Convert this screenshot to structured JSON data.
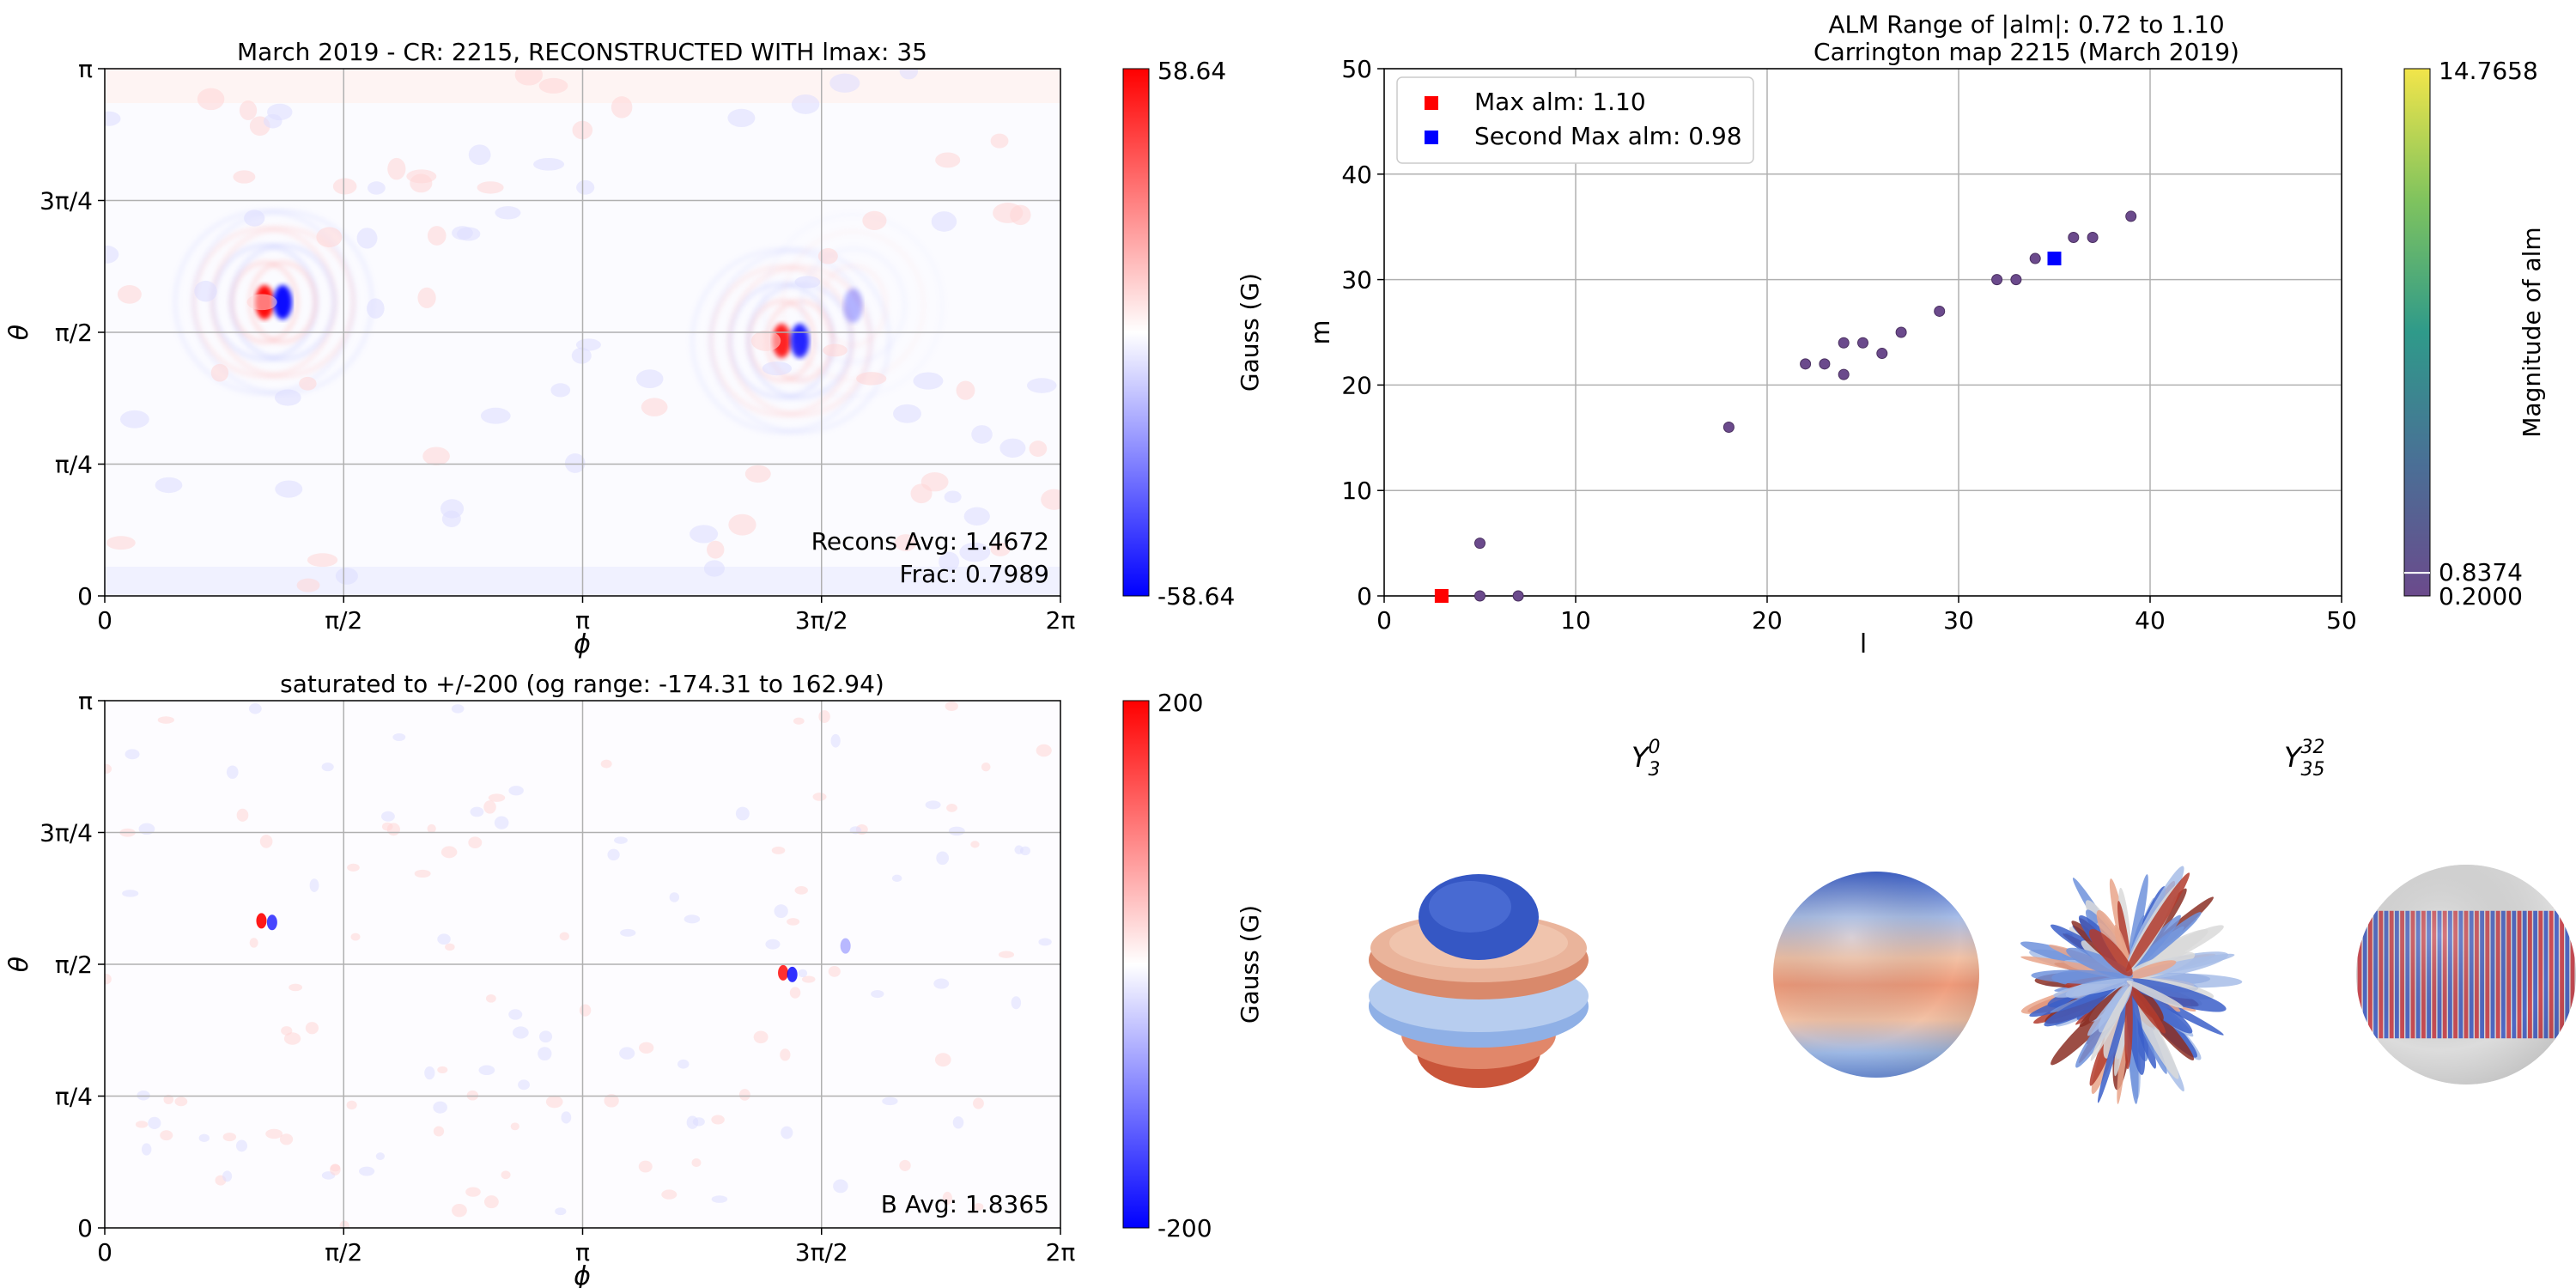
{
  "colors": {
    "map_positive": "#ff0000",
    "map_negative": "#0000ff",
    "scatter_point": "#6b4a8c",
    "max_alm": "#ff0000",
    "second_max_alm": "#0000ff",
    "grid": "#b0b0b0"
  },
  "chart_data": [
    {
      "type": "heatmap",
      "title": "March 2019 - CR: 2215, RECONSTRUCTED WITH lmax: 35",
      "xlabel": "ϕ",
      "ylabel": "θ",
      "xticks": [
        "0",
        "π/2",
        "π",
        "3π/2",
        "2π"
      ],
      "yticks": [
        "0",
        "π/4",
        "π/2",
        "3π/4",
        "π"
      ],
      "xlim": [
        0,
        6.2832
      ],
      "ylim": [
        0,
        3.1416
      ],
      "colorbar": {
        "label": "Gauss (G)",
        "max_label": "58.64",
        "min_label": "-58.64",
        "range": [
          -58.64,
          58.64
        ]
      },
      "annotations": [
        "Recons Avg: 1.4672",
        "Frac: 0.7989"
      ],
      "features": [
        {
          "phi": 1.05,
          "theta": 1.75,
          "polarity": "positive",
          "strength": 1.0
        },
        {
          "phi": 1.17,
          "theta": 1.75,
          "polarity": "negative",
          "strength": 1.0
        },
        {
          "phi": 4.45,
          "theta": 1.52,
          "polarity": "positive",
          "strength": 0.9
        },
        {
          "phi": 4.57,
          "theta": 1.52,
          "polarity": "negative",
          "strength": 0.9
        },
        {
          "phi": 4.92,
          "theta": 1.73,
          "polarity": "negative",
          "strength": 0.3
        }
      ]
    },
    {
      "type": "scatter",
      "title": "ALM Range of |alm|: 0.72 to 1.10",
      "subtitle": "Carrington map 2215 (March 2019)",
      "xlabel": "l",
      "ylabel": "m",
      "xlim": [
        0,
        50
      ],
      "ylim": [
        0,
        50
      ],
      "xticks": [
        0,
        10,
        20,
        30,
        40,
        50
      ],
      "yticks": [
        0,
        10,
        20,
        30,
        40,
        50
      ],
      "grid": true,
      "legend_position": "top-left",
      "points": [
        {
          "x": 5,
          "y": 5
        },
        {
          "x": 5,
          "y": 0
        },
        {
          "x": 7,
          "y": 0
        },
        {
          "x": 18,
          "y": 16
        },
        {
          "x": 22,
          "y": 22
        },
        {
          "x": 23,
          "y": 22
        },
        {
          "x": 24,
          "y": 24
        },
        {
          "x": 24,
          "y": 21
        },
        {
          "x": 25,
          "y": 24
        },
        {
          "x": 26,
          "y": 23
        },
        {
          "x": 27,
          "y": 25
        },
        {
          "x": 29,
          "y": 27
        },
        {
          "x": 32,
          "y": 30
        },
        {
          "x": 33,
          "y": 30
        },
        {
          "x": 34,
          "y": 32
        },
        {
          "x": 36,
          "y": 34
        },
        {
          "x": 37,
          "y": 34
        },
        {
          "x": 39,
          "y": 36
        }
      ],
      "highlights": [
        {
          "name": "Max alm: 1.10",
          "x": 3,
          "y": 0,
          "color": "#ff0000"
        },
        {
          "name": "Second Max alm: 0.98",
          "x": 35,
          "y": 32,
          "color": "#0000ff"
        }
      ],
      "colorbar": {
        "label": "Magnitude of alm",
        "max_label": "14.7658",
        "mid_label": "0.8374",
        "min_label": "0.2000",
        "range": [
          0.2,
          14.7658
        ],
        "marker_value": 0.8374
      }
    },
    {
      "type": "heatmap",
      "title": "saturated to +/-200 (og range: -174.31 to 162.94)",
      "xlabel": "ϕ",
      "ylabel": "θ",
      "xticks": [
        "0",
        "π/2",
        "π",
        "3π/2",
        "2π"
      ],
      "yticks": [
        "0",
        "π/4",
        "π/2",
        "3π/4",
        "π"
      ],
      "xlim": [
        0,
        6.2832
      ],
      "ylim": [
        0,
        3.1416
      ],
      "colorbar": {
        "label": "Gauss (G)",
        "max_label": "200",
        "min_label": "-200",
        "range": [
          -200,
          200
        ]
      },
      "annotations": [
        "B Avg: 1.8365"
      ],
      "features": [
        {
          "phi": 1.03,
          "theta": 1.83,
          "polarity": "positive",
          "strength": 1.0
        },
        {
          "phi": 1.1,
          "theta": 1.82,
          "polarity": "negative",
          "strength": 0.8
        },
        {
          "phi": 4.46,
          "theta": 1.52,
          "polarity": "positive",
          "strength": 0.9
        },
        {
          "phi": 4.52,
          "theta": 1.51,
          "polarity": "negative",
          "strength": 0.9
        },
        {
          "phi": 4.87,
          "theta": 1.68,
          "polarity": "negative",
          "strength": 0.3
        }
      ]
    }
  ],
  "harmonics": [
    {
      "label_base": "Y",
      "sub": "3",
      "sup": "0"
    },
    {
      "label_base": "Y",
      "sub": "35",
      "sup": "32"
    }
  ]
}
